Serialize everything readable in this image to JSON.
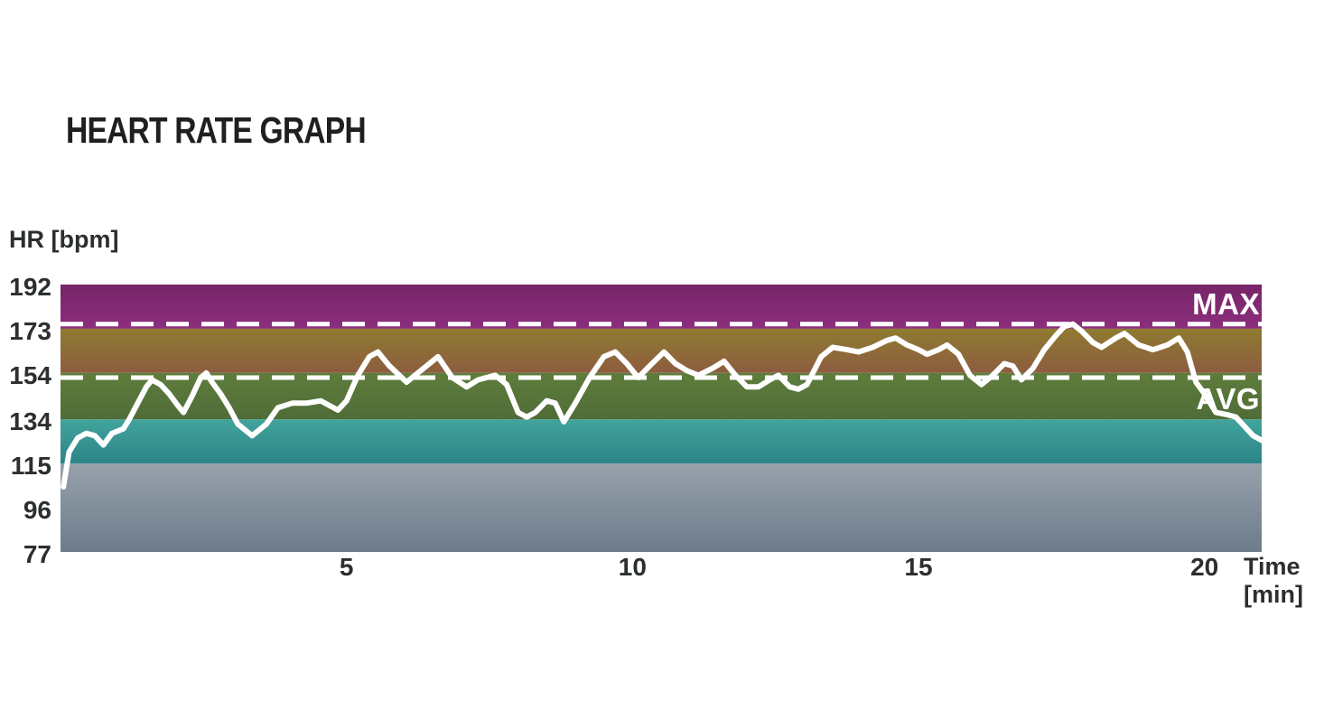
{
  "title": "HEART RATE GRAPH",
  "chart_data": {
    "type": "line",
    "title": "HEART RATE GRAPH",
    "ylabel": "HR [bpm]",
    "xlabel": "Time [min]",
    "xlabel_line1": "Time",
    "xlabel_line2": "[min]",
    "xlim": [
      0,
      21
    ],
    "ylim": [
      77,
      192
    ],
    "x_ticks": [
      5,
      10,
      15,
      20
    ],
    "y_ticks": [
      192,
      173,
      154,
      134,
      115,
      96,
      77
    ],
    "grid": false,
    "legend": "none",
    "max_line": {
      "label": "MAX",
      "value": 175
    },
    "avg_line": {
      "label": "AVG",
      "value": 152
    },
    "series_name": "heart-rate",
    "series_color": "#ffffff",
    "zones": [
      {
        "name": "zone-maximum",
        "from": 173,
        "to": 192,
        "top_color": "#772468",
        "bottom_color": "#8c2e7d"
      },
      {
        "name": "zone-hard",
        "from": 154,
        "to": 173,
        "top_color": "#8f7b30",
        "bottom_color": "#8d5c40"
      },
      {
        "name": "zone-moderate",
        "from": 134,
        "to": 154,
        "top_color": "#5e7d3c",
        "bottom_color": "#506c38"
      },
      {
        "name": "zone-light",
        "from": 115,
        "to": 134,
        "top_color": "#42a49c",
        "bottom_color": "#2b8487"
      },
      {
        "name": "zone-very-light",
        "from": 77,
        "to": 115,
        "top_color": "#97a1ab",
        "bottom_color": "#6d7c8b"
      }
    ],
    "x": [
      0.05,
      0.15,
      0.3,
      0.45,
      0.6,
      0.75,
      0.9,
      1.0,
      1.1,
      1.2,
      1.35,
      1.5,
      1.6,
      1.75,
      1.9,
      2.05,
      2.15,
      2.3,
      2.45,
      2.55,
      2.65,
      2.8,
      2.95,
      3.1,
      3.35,
      3.6,
      3.8,
      4.05,
      4.3,
      4.55,
      4.85,
      5.0,
      5.2,
      5.4,
      5.55,
      5.75,
      6.05,
      6.3,
      6.6,
      6.85,
      7.1,
      7.3,
      7.6,
      7.8,
      8.0,
      8.15,
      8.3,
      8.5,
      8.65,
      8.8,
      9.0,
      9.25,
      9.5,
      9.7,
      9.9,
      10.1,
      10.3,
      10.55,
      10.75,
      10.95,
      11.15,
      11.4,
      11.6,
      11.8,
      12.0,
      12.2,
      12.4,
      12.55,
      12.75,
      12.9,
      13.05,
      13.3,
      13.5,
      13.75,
      13.95,
      14.2,
      14.45,
      14.6,
      14.8,
      15.0,
      15.15,
      15.35,
      15.5,
      15.7,
      15.9,
      16.1,
      16.3,
      16.5,
      16.65,
      16.8,
      17.0,
      17.2,
      17.4,
      17.55,
      17.7,
      17.85,
      18.05,
      18.2,
      18.45,
      18.6,
      18.85,
      19.1,
      19.35,
      19.55,
      19.7,
      19.85,
      20.0,
      20.2,
      20.4,
      20.55,
      20.7,
      20.85,
      21.0
    ],
    "y": [
      105,
      120,
      126,
      128,
      127,
      123,
      128,
      129,
      130,
      134,
      141,
      148,
      151,
      149,
      145,
      140,
      137,
      144,
      152,
      154,
      150,
      145,
      139,
      132,
      127,
      132,
      139,
      141,
      141,
      142,
      138,
      142,
      153,
      161,
      163,
      157,
      150,
      155,
      161,
      152,
      148,
      151,
      153,
      149,
      137,
      135,
      137,
      142,
      141,
      133,
      141,
      152,
      161,
      163,
      158,
      152,
      157,
      163,
      158,
      155,
      153,
      156,
      159,
      153,
      148,
      148,
      151,
      153,
      148,
      147,
      149,
      161,
      165,
      164,
      163,
      165,
      168,
      169,
      166,
      164,
      162,
      164,
      166,
      162,
      153,
      149,
      153,
      158,
      157,
      151,
      156,
      164,
      170,
      174,
      175,
      172,
      167,
      165,
      169,
      171,
      166,
      164,
      166,
      169,
      163,
      150,
      145,
      137,
      136,
      135,
      131,
      127,
      125
    ]
  }
}
